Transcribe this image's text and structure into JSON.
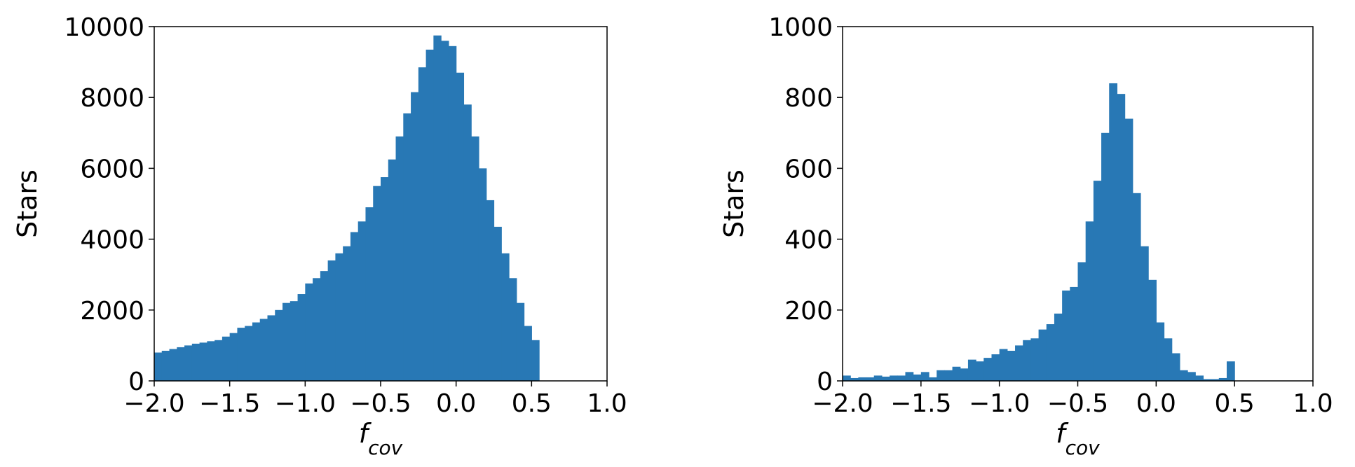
{
  "chart_data": [
    {
      "type": "bar",
      "title": "",
      "xlabel_main": "f",
      "xlabel_sub": "cov",
      "ylabel": "Stars",
      "xlim": [
        -2.0,
        1.0
      ],
      "ylim": [
        0,
        10000
      ],
      "xticks": [
        "−2.0",
        "−1.5",
        "−1.0",
        "−0.5",
        "0.0",
        "0.5",
        "1.0"
      ],
      "yticks": [
        "0",
        "2000",
        "4000",
        "6000",
        "8000",
        "10000"
      ],
      "bin_start": -2.0,
      "bin_width": 0.05,
      "color": "#2878b5",
      "values": [
        800,
        850,
        900,
        950,
        1000,
        1050,
        1080,
        1120,
        1150,
        1250,
        1350,
        1500,
        1550,
        1650,
        1750,
        1850,
        2000,
        2200,
        2250,
        2450,
        2750,
        2900,
        3100,
        3400,
        3600,
        3800,
        4200,
        4500,
        4900,
        5500,
        5750,
        6250,
        6900,
        7550,
        8150,
        8850,
        9350,
        9750,
        9600,
        9450,
        8700,
        7800,
        6900,
        6000,
        5100,
        4350,
        3600,
        2900,
        2200,
        1550,
        1150
      ]
    },
    {
      "type": "bar",
      "title": "",
      "xlabel_main": "f",
      "xlabel_sub": "cov",
      "ylabel": "Stars",
      "xlim": [
        -2.0,
        1.0
      ],
      "ylim": [
        0,
        1000
      ],
      "xticks": [
        "−2.0",
        "−1.5",
        "−1.0",
        "−0.5",
        "0.0",
        "0.5",
        "1.0"
      ],
      "yticks": [
        "0",
        "200",
        "400",
        "600",
        "800",
        "1000"
      ],
      "bin_start": -2.0,
      "bin_width": 0.05,
      "color": "#2878b5",
      "values": [
        15,
        8,
        10,
        10,
        15,
        12,
        15,
        15,
        25,
        18,
        25,
        10,
        30,
        30,
        40,
        35,
        60,
        55,
        65,
        75,
        90,
        85,
        100,
        115,
        120,
        145,
        160,
        190,
        255,
        265,
        335,
        450,
        565,
        700,
        840,
        810,
        740,
        530,
        380,
        285,
        165,
        120,
        78,
        30,
        25,
        15,
        5,
        5,
        8,
        55
      ]
    }
  ]
}
